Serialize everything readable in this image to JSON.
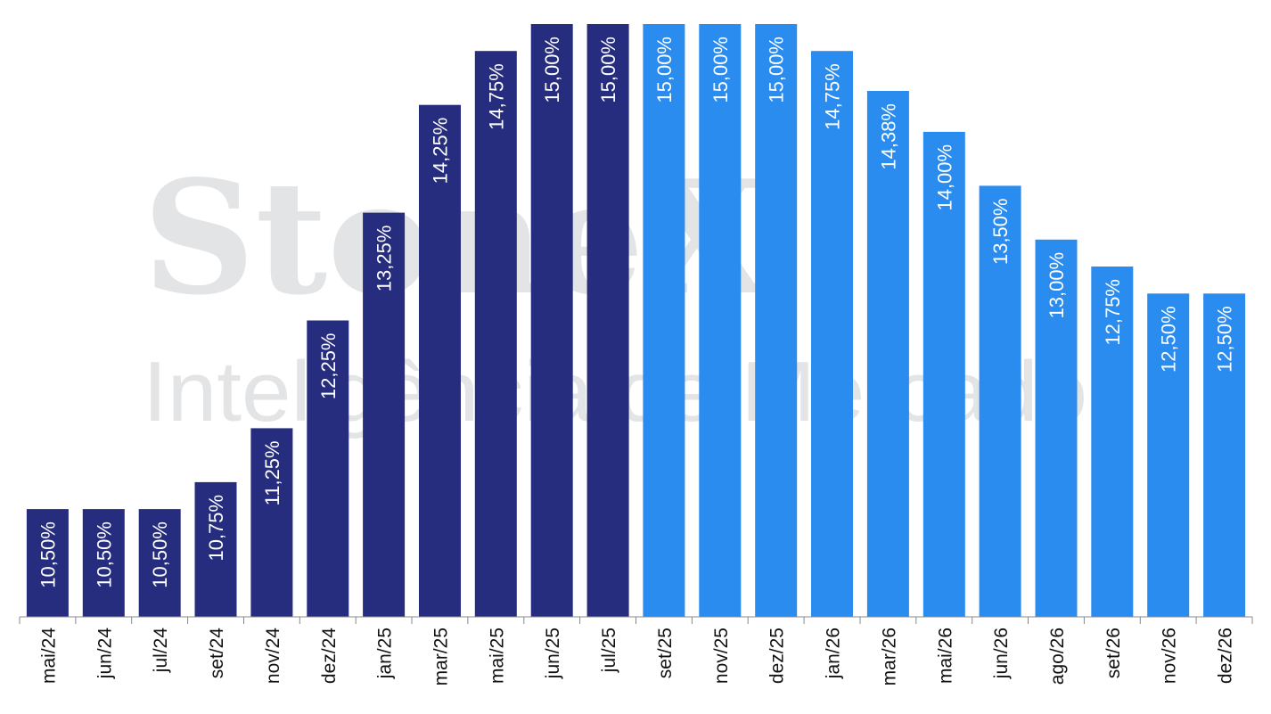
{
  "watermark": {
    "logo": "StoneX",
    "subtitle": "Inteligência de Mercado",
    "color": "#e3e4e6"
  },
  "chart_data": {
    "type": "bar",
    "categories": [
      "mai/24",
      "jun/24",
      "jul/24",
      "set/24",
      "nov/24",
      "dez/24",
      "jan/25",
      "mar/25",
      "mai/25",
      "jun/25",
      "jul/25",
      "set/25",
      "nov/25",
      "dez/25",
      "jan/26",
      "mar/26",
      "mai/26",
      "jun/26",
      "ago/26",
      "set/26",
      "nov/26",
      "dez/26"
    ],
    "values": [
      10.5,
      10.5,
      10.5,
      10.75,
      11.25,
      12.25,
      13.25,
      14.25,
      14.75,
      15.0,
      15.0,
      15.0,
      15.0,
      15.0,
      14.75,
      14.38,
      14.0,
      13.5,
      13.0,
      12.75,
      12.5,
      12.5
    ],
    "labels": [
      "10,50%",
      "10,50%",
      "10,50%",
      "10,75%",
      "11,25%",
      "12,25%",
      "13,25%",
      "14,25%",
      "14,75%",
      "15,00%",
      "15,00%",
      "15,00%",
      "15,00%",
      "15,00%",
      "14,75%",
      "14,38%",
      "14,00%",
      "13,50%",
      "13,00%",
      "12,75%",
      "12,50%",
      "12,50%"
    ],
    "kinds": [
      "actual",
      "actual",
      "actual",
      "actual",
      "actual",
      "actual",
      "actual",
      "actual",
      "actual",
      "actual",
      "actual",
      "projection",
      "projection",
      "projection",
      "projection",
      "projection",
      "projection",
      "projection",
      "projection",
      "projection",
      "projection",
      "projection"
    ],
    "colors": {
      "actual": "#262d7f",
      "projection": "#2a8cef",
      "label": "#ffffff",
      "axis": "#888888",
      "tick_text": "#111111"
    },
    "ylim": [
      9.5,
      15.0
    ],
    "grid": false,
    "title": "",
    "xlabel": "",
    "ylabel": ""
  }
}
